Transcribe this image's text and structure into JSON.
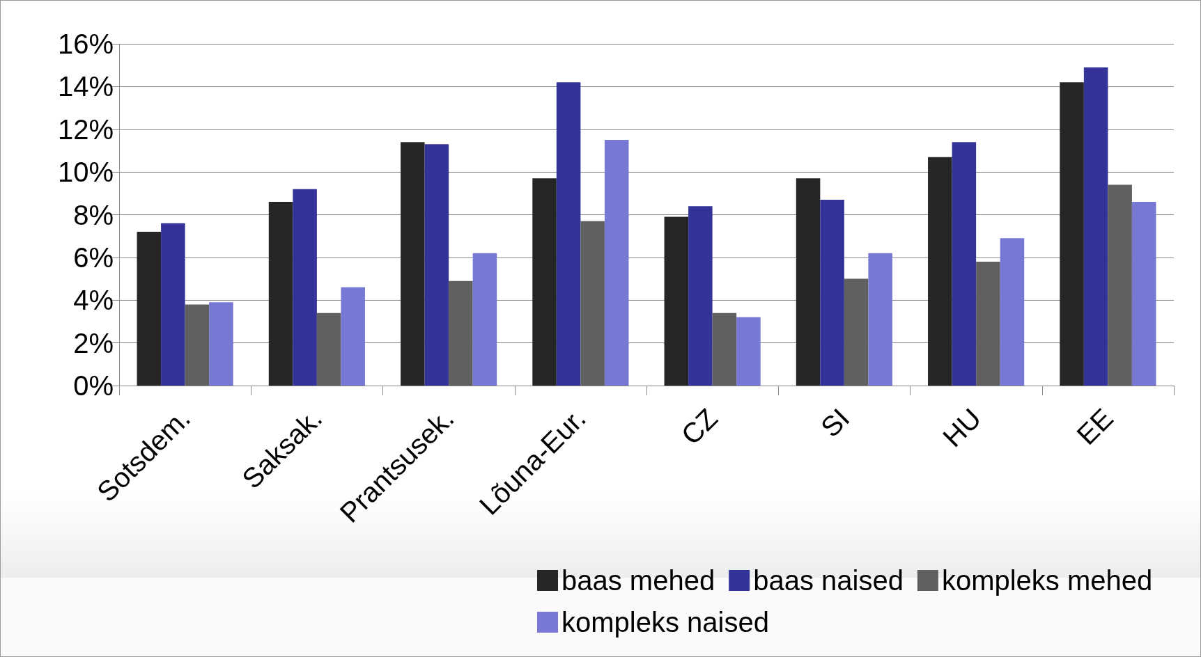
{
  "chart_data": {
    "type": "bar",
    "categories": [
      "Sotsdem.",
      "Saksak.",
      "Prantsusek.",
      "Lõuna-Eur.",
      "CZ",
      "SI",
      "HU",
      "EE"
    ],
    "series": [
      {
        "name": "baas mehed",
        "color": "#262626",
        "values": [
          7.2,
          8.6,
          11.4,
          9.7,
          7.9,
          9.7,
          10.7,
          14.2
        ]
      },
      {
        "name": "baas naised",
        "color": "#333399",
        "values": [
          7.6,
          9.2,
          11.3,
          14.2,
          8.4,
          8.7,
          11.4,
          14.9
        ]
      },
      {
        "name": "kompleks mehed",
        "color": "#606060",
        "values": [
          3.8,
          3.4,
          4.9,
          7.7,
          3.4,
          5.0,
          5.8,
          9.4
        ]
      },
      {
        "name": "kompleks naised",
        "color": "#7777d4",
        "values": [
          3.9,
          4.6,
          6.2,
          11.5,
          3.2,
          6.2,
          6.9,
          8.6
        ]
      }
    ],
    "ylim": [
      0,
      16
    ],
    "yticks": [
      {
        "value": 0,
        "label": "0%"
      },
      {
        "value": 2,
        "label": "2%"
      },
      {
        "value": 4,
        "label": "4%"
      },
      {
        "value": 6,
        "label": "6%"
      },
      {
        "value": 8,
        "label": "8%"
      },
      {
        "value": 10,
        "label": "10%"
      },
      {
        "value": 12,
        "label": "12%"
      },
      {
        "value": 14,
        "label": "14%"
      },
      {
        "value": 16,
        "label": "16%"
      }
    ],
    "grid": "y",
    "legend": "bottom right"
  }
}
